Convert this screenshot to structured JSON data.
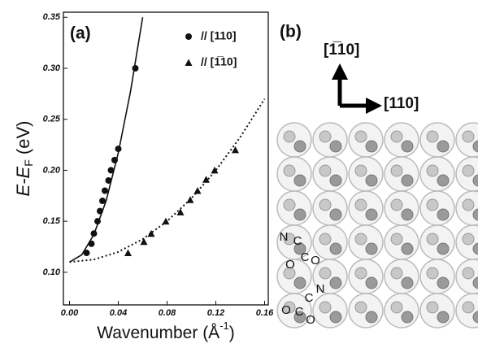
{
  "chart_data": {
    "type": "scatter",
    "panel_label": "(a)",
    "y_label": {
      "main": "E-E",
      "sub": "F",
      "unit": " (eV)"
    },
    "x_label": {
      "main": "Wavenumber (Å",
      "sup": "-1",
      "end": ")"
    },
    "xlim": [
      -0.005,
      0.163
    ],
    "ylim": [
      0.068,
      0.355
    ],
    "xticks": [
      {
        "value": 0,
        "label": "0.00"
      },
      0.04,
      0.08,
      0.12,
      0.16
    ],
    "yticks": [
      {
        "value": 0.1,
        "label": "0.10"
      },
      0.15,
      {
        "value": 0.2,
        "label": "0.20"
      },
      0.25,
      {
        "value": 0.3,
        "label": "0.30"
      },
      0.35
    ],
    "legend": "top-right",
    "series": [
      {
        "name": "// [110]",
        "marker": "circle",
        "color": "#111111",
        "x": [
          0.014,
          0.018,
          0.02,
          0.023,
          0.025,
          0.027,
          0.029,
          0.032,
          0.034,
          0.037,
          0.04,
          0.054
        ],
        "y": [
          0.119,
          0.128,
          0.138,
          0.15,
          0.16,
          0.17,
          0.18,
          0.19,
          0.2,
          0.21,
          0.221,
          0.3
        ]
      },
      {
        "name": "// [1̅10]",
        "marker": "triangle",
        "color": "#111111",
        "x": [
          0.048,
          0.061,
          0.067,
          0.079,
          0.091,
          0.099,
          0.105,
          0.112,
          0.119,
          0.136
        ],
        "y": [
          0.119,
          0.13,
          0.138,
          0.15,
          0.159,
          0.171,
          0.18,
          0.191,
          0.2,
          0.22
        ]
      }
    ],
    "fits": [
      {
        "style": "solid",
        "x": [
          0,
          0.01,
          0.02,
          0.03,
          0.04,
          0.05,
          0.06
        ],
        "y": [
          0.11,
          0.117,
          0.137,
          0.17,
          0.217,
          0.277,
          0.35
        ]
      },
      {
        "style": "dotted",
        "x": [
          0,
          0.02,
          0.04,
          0.06,
          0.08,
          0.1,
          0.12,
          0.14,
          0.16
        ],
        "y": [
          0.11,
          0.1125,
          0.12,
          0.1325,
          0.15,
          0.1725,
          0.2,
          0.2325,
          0.27
        ]
      }
    ]
  },
  "panel_b": {
    "label": "(b)",
    "dir_up": "[1̅10]",
    "dir_right": "[110]",
    "molecule_1": [
      "N",
      "C",
      "O",
      "C",
      "O"
    ],
    "molecule_2": [
      "N",
      "C",
      "O",
      "C",
      "O"
    ]
  }
}
